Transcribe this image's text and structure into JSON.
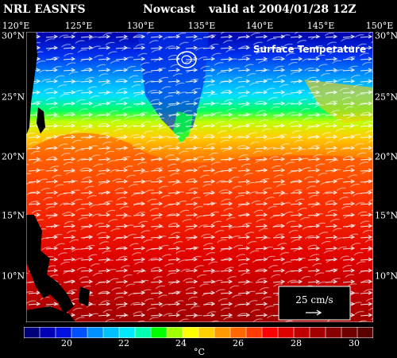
{
  "header": {
    "model": "NRL EASNFS",
    "product": "Nowcast",
    "valid": "valid at 2004/01/28 12Z"
  },
  "map": {
    "title": "Surface Temperature",
    "lon_labels": [
      "120°E",
      "125°E",
      "130°E",
      "135°E",
      "140°E",
      "145°E",
      "150°E"
    ],
    "lat_labels": [
      "30°N",
      "25°N",
      "20°N",
      "15°N",
      "10°N"
    ],
    "legend_speed": "25 cm/s",
    "land_color": "#000000",
    "vector_color": "#ffffff"
  },
  "colorbar": {
    "unit": "°C",
    "tick_labels": [
      "20",
      "22",
      "24",
      "26",
      "28",
      "30"
    ],
    "colors": [
      "#00007a",
      "#0000b4",
      "#0010e0",
      "#0050ff",
      "#0090ff",
      "#00c0ff",
      "#00e8ff",
      "#00ffb0",
      "#00ff00",
      "#a0ff00",
      "#ffff00",
      "#ffd000",
      "#ff9a00",
      "#ff6800",
      "#ff3c00",
      "#ff0000",
      "#e00000",
      "#c00000",
      "#a40000",
      "#880000",
      "#700000",
      "#5a0000"
    ]
  }
}
